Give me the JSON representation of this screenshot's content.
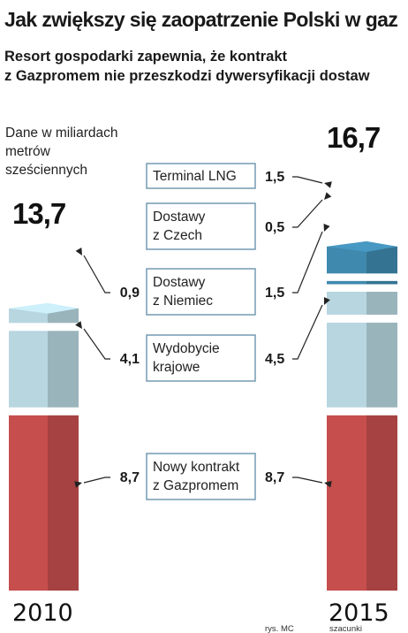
{
  "title": "Jak zwiększy się zaopatrzenie Polski w gaz",
  "subtitle_line1": "Resort gospodarki zapewnia, że kontrakt",
  "subtitle_line2": "z Gazpromem nie przeszkodzi dywersyfikacji dostaw",
  "units": [
    "Dane w miliardach",
    "metrów",
    "sześciennych"
  ],
  "credit": "rys. MC",
  "note_2015": "szacunki",
  "colors": {
    "nowy_kontrakt": "#c64e4d",
    "wydobycie": "#b7d6e0",
    "niemcy": "#b7d6e0",
    "czechy": "#3f89ae",
    "lng": "#3f89ae"
  },
  "chart_data": {
    "type": "bar",
    "stacked": true,
    "categories": [
      "2010",
      "2015"
    ],
    "totals": [
      "13,7",
      "16,7"
    ],
    "series": [
      {
        "name": "Nowy kontrakt z Gazpromem",
        "values": [
          8.7,
          8.7
        ],
        "labels": [
          "8,7",
          "8,7"
        ]
      },
      {
        "name": "Wydobycie krajowe",
        "values": [
          4.1,
          4.5
        ],
        "labels": [
          "4,1",
          "4,5"
        ]
      },
      {
        "name": "Dostawy z Niemiec",
        "values": [
          0.9,
          1.5
        ],
        "labels": [
          "0,9",
          "1,5"
        ]
      },
      {
        "name": "Dostawy z Czech",
        "values": [
          0,
          0.5
        ],
        "labels": [
          "",
          "0,5"
        ]
      },
      {
        "name": "Terminal LNG",
        "values": [
          0,
          1.5
        ],
        "labels": [
          "",
          "1,5"
        ]
      }
    ],
    "legend_boxes": [
      [
        "Terminal LNG"
      ],
      [
        "Dostawy",
        "z Czech"
      ],
      [
        "Dostawy",
        "z Niemiec"
      ],
      [
        "Wydobycie",
        "krajowe"
      ],
      [
        "Nowy kontrakt",
        "z Gazpromem"
      ]
    ]
  }
}
